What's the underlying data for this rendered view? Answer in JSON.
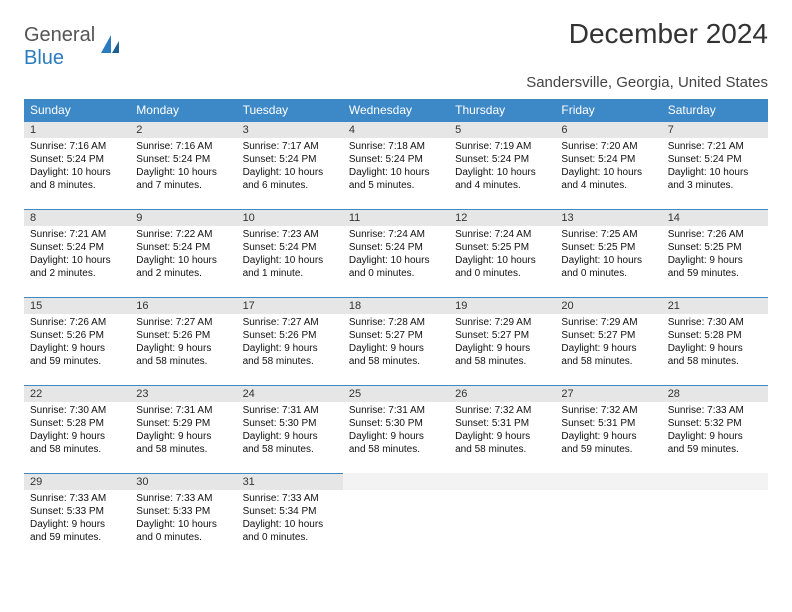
{
  "brand": {
    "general": "General",
    "blue": "Blue"
  },
  "title": "December 2024",
  "location": "Sandersville, Georgia, United States",
  "colors": {
    "header_bg": "#3d88c7",
    "daynum_bg": "#e6e6e6",
    "border": "#3d88c7"
  },
  "day_headers": [
    "Sunday",
    "Monday",
    "Tuesday",
    "Wednesday",
    "Thursday",
    "Friday",
    "Saturday"
  ],
  "weeks": [
    [
      {
        "n": "1",
        "sr": "Sunrise: 7:16 AM",
        "ss": "Sunset: 5:24 PM",
        "dl": "Daylight: 10 hours and 8 minutes."
      },
      {
        "n": "2",
        "sr": "Sunrise: 7:16 AM",
        "ss": "Sunset: 5:24 PM",
        "dl": "Daylight: 10 hours and 7 minutes."
      },
      {
        "n": "3",
        "sr": "Sunrise: 7:17 AM",
        "ss": "Sunset: 5:24 PM",
        "dl": "Daylight: 10 hours and 6 minutes."
      },
      {
        "n": "4",
        "sr": "Sunrise: 7:18 AM",
        "ss": "Sunset: 5:24 PM",
        "dl": "Daylight: 10 hours and 5 minutes."
      },
      {
        "n": "5",
        "sr": "Sunrise: 7:19 AM",
        "ss": "Sunset: 5:24 PM",
        "dl": "Daylight: 10 hours and 4 minutes."
      },
      {
        "n": "6",
        "sr": "Sunrise: 7:20 AM",
        "ss": "Sunset: 5:24 PM",
        "dl": "Daylight: 10 hours and 4 minutes."
      },
      {
        "n": "7",
        "sr": "Sunrise: 7:21 AM",
        "ss": "Sunset: 5:24 PM",
        "dl": "Daylight: 10 hours and 3 minutes."
      }
    ],
    [
      {
        "n": "8",
        "sr": "Sunrise: 7:21 AM",
        "ss": "Sunset: 5:24 PM",
        "dl": "Daylight: 10 hours and 2 minutes."
      },
      {
        "n": "9",
        "sr": "Sunrise: 7:22 AM",
        "ss": "Sunset: 5:24 PM",
        "dl": "Daylight: 10 hours and 2 minutes."
      },
      {
        "n": "10",
        "sr": "Sunrise: 7:23 AM",
        "ss": "Sunset: 5:24 PM",
        "dl": "Daylight: 10 hours and 1 minute."
      },
      {
        "n": "11",
        "sr": "Sunrise: 7:24 AM",
        "ss": "Sunset: 5:24 PM",
        "dl": "Daylight: 10 hours and 0 minutes."
      },
      {
        "n": "12",
        "sr": "Sunrise: 7:24 AM",
        "ss": "Sunset: 5:25 PM",
        "dl": "Daylight: 10 hours and 0 minutes."
      },
      {
        "n": "13",
        "sr": "Sunrise: 7:25 AM",
        "ss": "Sunset: 5:25 PM",
        "dl": "Daylight: 10 hours and 0 minutes."
      },
      {
        "n": "14",
        "sr": "Sunrise: 7:26 AM",
        "ss": "Sunset: 5:25 PM",
        "dl": "Daylight: 9 hours and 59 minutes."
      }
    ],
    [
      {
        "n": "15",
        "sr": "Sunrise: 7:26 AM",
        "ss": "Sunset: 5:26 PM",
        "dl": "Daylight: 9 hours and 59 minutes."
      },
      {
        "n": "16",
        "sr": "Sunrise: 7:27 AM",
        "ss": "Sunset: 5:26 PM",
        "dl": "Daylight: 9 hours and 58 minutes."
      },
      {
        "n": "17",
        "sr": "Sunrise: 7:27 AM",
        "ss": "Sunset: 5:26 PM",
        "dl": "Daylight: 9 hours and 58 minutes."
      },
      {
        "n": "18",
        "sr": "Sunrise: 7:28 AM",
        "ss": "Sunset: 5:27 PM",
        "dl": "Daylight: 9 hours and 58 minutes."
      },
      {
        "n": "19",
        "sr": "Sunrise: 7:29 AM",
        "ss": "Sunset: 5:27 PM",
        "dl": "Daylight: 9 hours and 58 minutes."
      },
      {
        "n": "20",
        "sr": "Sunrise: 7:29 AM",
        "ss": "Sunset: 5:27 PM",
        "dl": "Daylight: 9 hours and 58 minutes."
      },
      {
        "n": "21",
        "sr": "Sunrise: 7:30 AM",
        "ss": "Sunset: 5:28 PM",
        "dl": "Daylight: 9 hours and 58 minutes."
      }
    ],
    [
      {
        "n": "22",
        "sr": "Sunrise: 7:30 AM",
        "ss": "Sunset: 5:28 PM",
        "dl": "Daylight: 9 hours and 58 minutes."
      },
      {
        "n": "23",
        "sr": "Sunrise: 7:31 AM",
        "ss": "Sunset: 5:29 PM",
        "dl": "Daylight: 9 hours and 58 minutes."
      },
      {
        "n": "24",
        "sr": "Sunrise: 7:31 AM",
        "ss": "Sunset: 5:30 PM",
        "dl": "Daylight: 9 hours and 58 minutes."
      },
      {
        "n": "25",
        "sr": "Sunrise: 7:31 AM",
        "ss": "Sunset: 5:30 PM",
        "dl": "Daylight: 9 hours and 58 minutes."
      },
      {
        "n": "26",
        "sr": "Sunrise: 7:32 AM",
        "ss": "Sunset: 5:31 PM",
        "dl": "Daylight: 9 hours and 58 minutes."
      },
      {
        "n": "27",
        "sr": "Sunrise: 7:32 AM",
        "ss": "Sunset: 5:31 PM",
        "dl": "Daylight: 9 hours and 59 minutes."
      },
      {
        "n": "28",
        "sr": "Sunrise: 7:33 AM",
        "ss": "Sunset: 5:32 PM",
        "dl": "Daylight: 9 hours and 59 minutes."
      }
    ],
    [
      {
        "n": "29",
        "sr": "Sunrise: 7:33 AM",
        "ss": "Sunset: 5:33 PM",
        "dl": "Daylight: 9 hours and 59 minutes."
      },
      {
        "n": "30",
        "sr": "Sunrise: 7:33 AM",
        "ss": "Sunset: 5:33 PM",
        "dl": "Daylight: 10 hours and 0 minutes."
      },
      {
        "n": "31",
        "sr": "Sunrise: 7:33 AM",
        "ss": "Sunset: 5:34 PM",
        "dl": "Daylight: 10 hours and 0 minutes."
      },
      {
        "empty": true
      },
      {
        "empty": true
      },
      {
        "empty": true
      },
      {
        "empty": true
      }
    ]
  ]
}
